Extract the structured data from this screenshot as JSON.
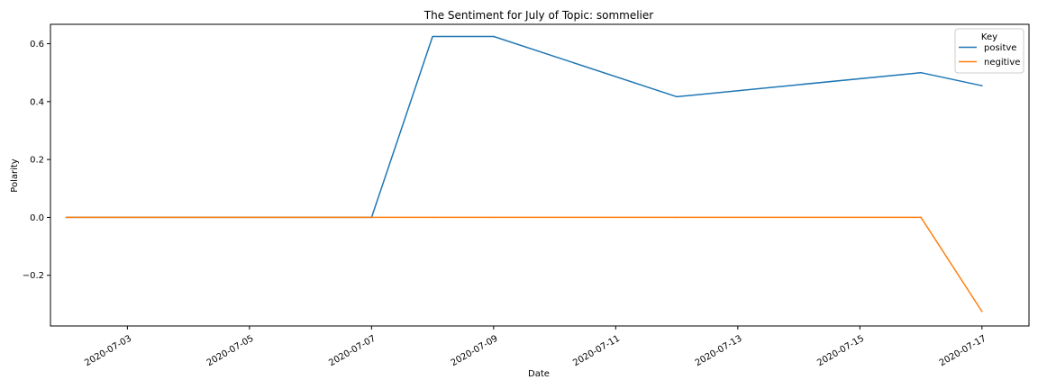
{
  "chart_data": {
    "type": "line",
    "title": "The Sentiment for July of Topic: sommelier",
    "xlabel": "Date",
    "ylabel": "Polarity",
    "x": [
      "2020-07-02",
      "2020-07-07",
      "2020-07-08",
      "2020-07-09",
      "2020-07-12",
      "2020-07-16",
      "2020-07-17"
    ],
    "series": [
      {
        "name": "positve",
        "color": "#1f77b4",
        "values": [
          0.0,
          0.0,
          0.625,
          0.625,
          0.417,
          0.5,
          0.455
        ]
      },
      {
        "name": "negitive",
        "color": "#ff7f0e",
        "values": [
          0.0,
          0.0,
          0.0,
          0.0,
          0.0,
          0.0,
          -0.325
        ]
      }
    ],
    "xlim": [
      "2020-07-01",
      "2020-07-17"
    ],
    "ylim": [
      -0.375,
      0.667
    ],
    "xticks": [
      "2020-07-03",
      "2020-07-05",
      "2020-07-07",
      "2020-07-09",
      "2020-07-11",
      "2020-07-13",
      "2020-07-15",
      "2020-07-17"
    ],
    "yticks": [
      -0.2,
      0.0,
      0.2,
      0.4,
      0.6
    ],
    "ytick_labels": [
      "−0.2",
      "0.0",
      "0.2",
      "0.4",
      "0.6"
    ],
    "legend": {
      "title": "Key",
      "placement": "top-right"
    },
    "grid": false
  }
}
